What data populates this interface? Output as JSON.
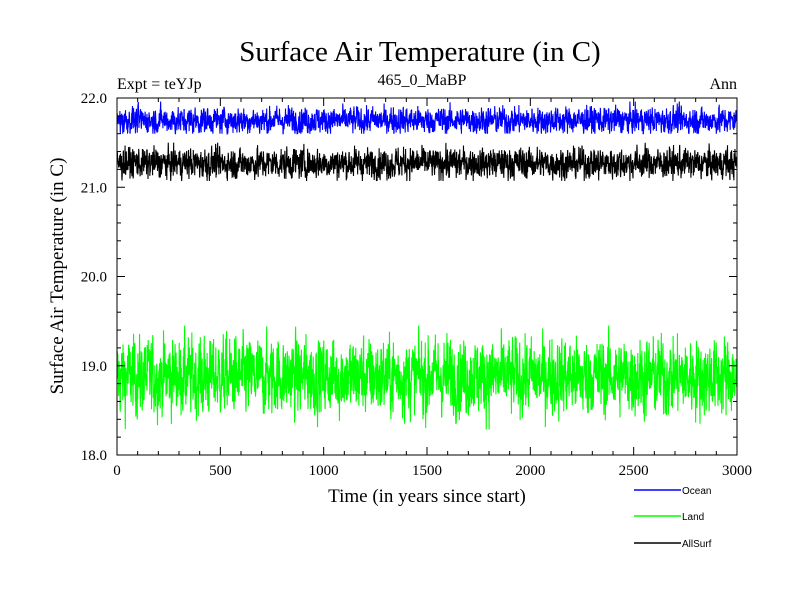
{
  "chart_data": {
    "type": "line",
    "title": "Surface Air Temperature (in C)",
    "subtitle_left": "Expt = teYJp",
    "subtitle_center": "465_0_MaBP",
    "subtitle_right": "Ann",
    "xlabel": "Time (in years since start)",
    "ylabel": "Surface Air Temperature (in C)",
    "xlim": [
      0,
      3000
    ],
    "ylim": [
      18.0,
      22.0
    ],
    "xticks": [
      0,
      500,
      1000,
      1500,
      2000,
      2500,
      3000
    ],
    "xtick_labels": [
      "0",
      "500",
      "1000",
      "1500",
      "2000",
      "2500",
      "3000"
    ],
    "yticks": [
      18.0,
      19.0,
      20.0,
      21.0,
      22.0
    ],
    "ytick_labels": [
      "18.0",
      "19.0",
      "20.0",
      "21.0",
      "22.0"
    ],
    "grid": false,
    "legend_position": "below-right",
    "series": [
      {
        "name": "Ocean",
        "color": "#0000ff",
        "mean": 21.75,
        "amplitude": 0.07,
        "peak_max": 21.96,
        "peak_min": 21.6
      },
      {
        "name": "Land",
        "color": "#00ff00",
        "mean": 18.88,
        "amplitude": 0.2,
        "peak_max": 19.45,
        "peak_min": 18.22
      },
      {
        "name": "AllSurf",
        "color": "#000000",
        "mean": 21.27,
        "amplitude": 0.08,
        "peak_max": 21.5,
        "peak_min": 21.07
      }
    ],
    "n_points": 3000
  }
}
